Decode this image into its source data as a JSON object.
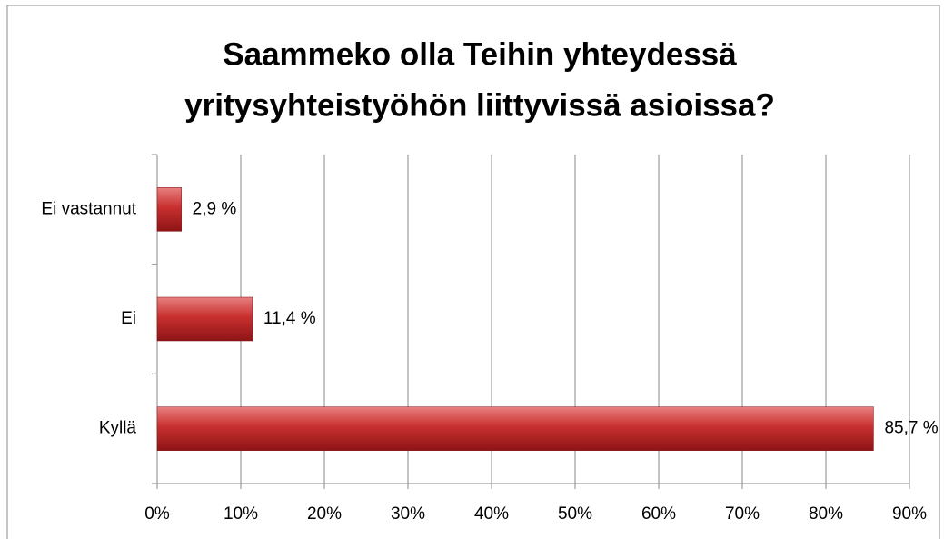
{
  "chart_data": {
    "type": "bar",
    "orientation": "horizontal",
    "title": [
      "Saammeko olla Teihin yhteydessä",
      "yritysyhteistyöhön liittyvissä asioissa?"
    ],
    "categories": [
      "Ei vastannut",
      "Ei",
      "Kyllä"
    ],
    "values": [
      2.9,
      11.4,
      85.7
    ],
    "value_labels": [
      "2,9 %",
      "11,4 %",
      "85,7 %"
    ],
    "color": "#c0282a",
    "xlim": [
      0,
      90
    ],
    "xticks": [
      {
        "value": 0,
        "label": "0%"
      },
      {
        "value": 10,
        "label": "10%"
      },
      {
        "value": 20,
        "label": "20%"
      },
      {
        "value": 30,
        "label": "30%"
      },
      {
        "value": 40,
        "label": "40%"
      },
      {
        "value": 50,
        "label": "50%"
      },
      {
        "value": 60,
        "label": "60%"
      },
      {
        "value": 70,
        "label": "70%"
      },
      {
        "value": 80,
        "label": "80%"
      },
      {
        "value": 90,
        "label": "90%"
      }
    ],
    "grid": true
  }
}
